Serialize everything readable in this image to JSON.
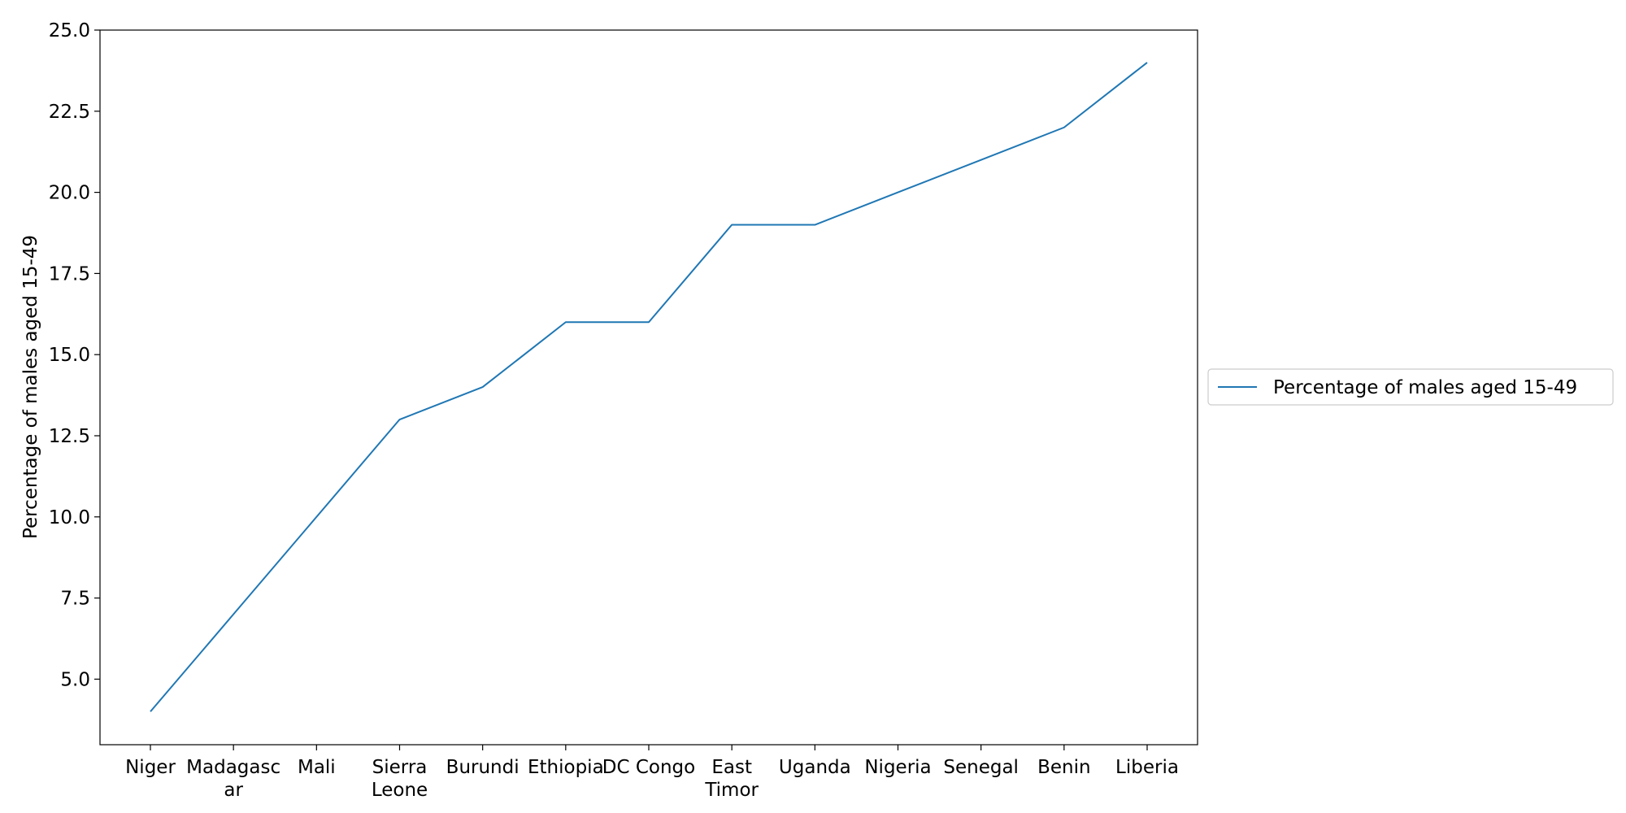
{
  "chart_data": {
    "type": "line",
    "categories": [
      "Niger",
      "Madagascar",
      "Mali",
      "Sierra Leone",
      "Burundi",
      "Ethiopia",
      "DC Congo",
      "East Timor",
      "Uganda",
      "Nigeria",
      "Senegal",
      "Benin",
      "Liberia"
    ],
    "category_display": [
      [
        "Niger"
      ],
      [
        "Madagasc",
        "ar"
      ],
      [
        "Mali"
      ],
      [
        "Sierra",
        "Leone"
      ],
      [
        "Burundi"
      ],
      [
        "Ethiopia"
      ],
      [
        "DC Congo"
      ],
      [
        "East",
        "Timor"
      ],
      [
        "Uganda"
      ],
      [
        "Nigeria"
      ],
      [
        "Senegal"
      ],
      [
        "Benin"
      ],
      [
        "Liberia"
      ]
    ],
    "series": [
      {
        "name": "Percentage of males aged 15-49",
        "values": [
          4,
          7,
          10,
          13,
          14,
          16,
          16,
          19,
          19,
          20,
          21,
          22,
          24
        ],
        "color": "#1f77b4"
      }
    ],
    "title": "",
    "xlabel": "",
    "ylabel": "Percentage of males aged 15-49",
    "ylim": [
      2.98,
      25.0
    ],
    "yticks": [
      5.0,
      7.5,
      10.0,
      12.5,
      15.0,
      17.5,
      20.0,
      22.5,
      25.0
    ],
    "ytick_labels": [
      "5.0",
      "7.5",
      "10.0",
      "12.5",
      "15.0",
      "17.5",
      "20.0",
      "22.5",
      "25.0"
    ],
    "grid": false,
    "legend": "right"
  }
}
